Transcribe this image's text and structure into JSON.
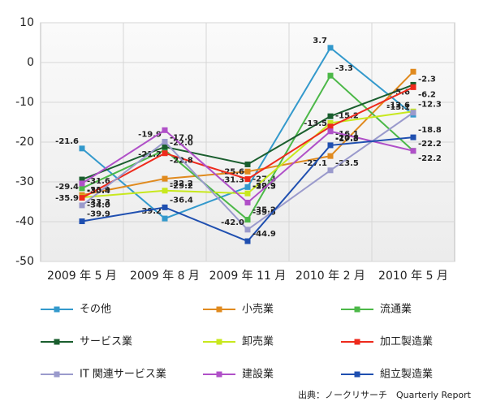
{
  "chart_data": {
    "type": "line",
    "categories": [
      "2009 年 5 月",
      "2009 年 8 月",
      "2009 年 11 月",
      "2010 年 2 月",
      "2010 年 5 月"
    ],
    "ylim": [
      -50,
      10
    ],
    "yticks": [
      10,
      0,
      -10,
      -20,
      -30,
      -40,
      -50
    ],
    "grid": true,
    "series": [
      {
        "name": "その他",
        "color": "#3399cc",
        "values": [
          -21.6,
          -39.2,
          -31.3,
          3.7,
          -13.1
        ]
      },
      {
        "name": "小売業",
        "color": "#e08a1e",
        "values": [
          -33.3,
          -29.2,
          -27.4,
          -23.5,
          -2.3
        ]
      },
      {
        "name": "流通業",
        "color": "#4cb848",
        "values": [
          -31.6,
          -22.0,
          -39.5,
          -3.3,
          -22.2
        ],
        "value_labels": [
          "-31.6",
          "-22.0",
          "-39.5",
          "-3.3",
          "-22.2"
        ]
      },
      {
        "name": "サービス業",
        "color": "#1a5e2e",
        "values": [
          -29.4,
          -21.2,
          -25.6,
          -13.5,
          -5.6
        ]
      },
      {
        "name": "卸売業",
        "color": "#c8e81e",
        "values": [
          -33.9,
          -32.2,
          -32.9,
          -15.2,
          -12.3
        ]
      },
      {
        "name": "加工製造業",
        "color": "#ee2a1c",
        "values": [
          -34.0,
          -22.8,
          -29.3,
          -16.1,
          -6.2
        ],
        "value_labels": [
          "-34.0",
          "-22.8",
          "-29.3",
          "-16.1",
          "-6.2"
        ]
      },
      {
        "name": "IT 関連サービス業",
        "color": "#9a9acc",
        "values": [
          -35.9,
          -19.9,
          -42.0,
          -27.1,
          -12.6
        ],
        "value_labels": [
          "-35.9",
          "-19.9",
          "-42.0",
          "-27.1",
          "-12.6"
        ]
      },
      {
        "name": "建設業",
        "color": "#b050c8",
        "values": [
          -30.4,
          -17.0,
          -35.2,
          -17.3,
          -22.2
        ],
        "value_labels": [
          "-30.4",
          "-17.0",
          "-35.2",
          "-17.3",
          "-22.2"
        ]
      },
      {
        "name": "組立製造業",
        "color": "#1f4fb0",
        "values": [
          -39.9,
          -36.4,
          -44.9,
          -20.8,
          -18.8
        ]
      }
    ],
    "legend": "bottom",
    "source": "出典：ノークリサーチ　Quarterly Report"
  }
}
